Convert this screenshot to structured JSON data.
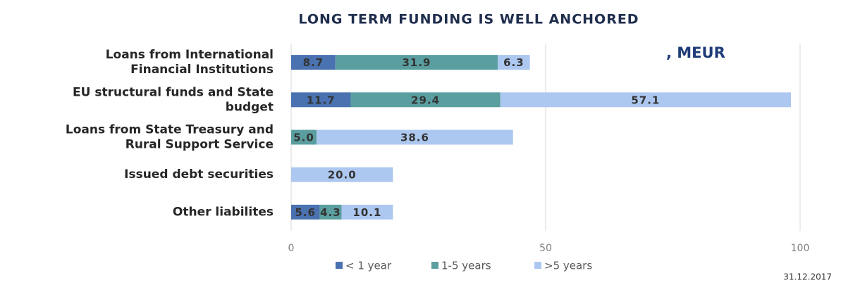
{
  "chart_data": {
    "type": "stacked_barh",
    "title": "LONG TERM FUNDING IS WELL ANCHORED",
    "annotation": ", MEUR",
    "date_note": "31.12.2017",
    "categories": [
      "Loans from International\nFinancial Institutions",
      "EU structural funds and State\nbudget",
      "Loans from State Treasury and\nRural Support Service",
      "Issued debt securities",
      "Other liabilites"
    ],
    "series": [
      {
        "name": "< 1 year",
        "color": "#4a72b0",
        "values": [
          8.7,
          11.7,
          null,
          null,
          5.6
        ],
        "value_labels": [
          "8.7",
          "11.7",
          null,
          null,
          "5.6"
        ]
      },
      {
        "name": "1-5 years",
        "color": "#5b9ea0",
        "values": [
          31.9,
          29.4,
          5,
          null,
          4.3
        ],
        "value_labels": [
          "31.9",
          "29.4",
          "5.0",
          null,
          "4.3"
        ]
      },
      {
        "name": ">5 years",
        "color": "#adc8f0",
        "values": [
          6.3,
          57.1,
          38.6,
          20,
          10.1
        ],
        "value_labels": [
          "6.3",
          "57.1",
          "38.6",
          "20.0",
          "10.1"
        ]
      }
    ],
    "xlim": [
      0,
      100
    ],
    "xticks": [
      0,
      50,
      100
    ],
    "grid": true,
    "legend": "bottom"
  }
}
